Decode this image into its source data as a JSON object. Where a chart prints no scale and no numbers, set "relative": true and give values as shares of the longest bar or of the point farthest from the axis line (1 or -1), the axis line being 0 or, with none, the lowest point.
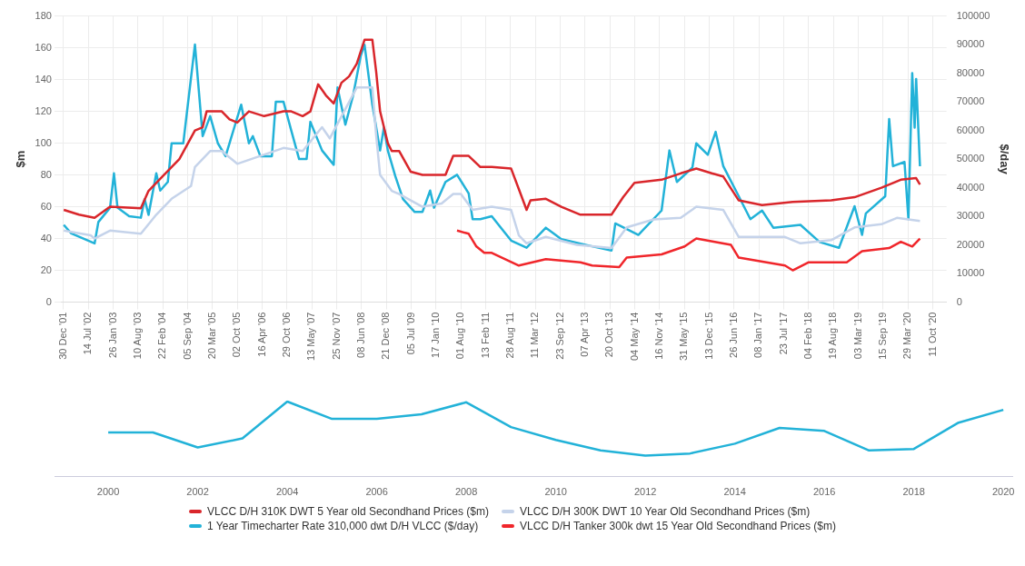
{
  "chart_data": [
    {
      "type": "line",
      "ylabel": "$m",
      "y2label": "$/day",
      "xlim": [
        "2001-12-16",
        "2021-01-27"
      ],
      "xticks": [
        {
          "value": "2001-12-30",
          "label": "30 Dec '01"
        },
        {
          "value": "2002-07-14",
          "label": "14 Jul '02"
        },
        {
          "value": "2003-01-26",
          "label": "26 Jan '03"
        },
        {
          "value": "2003-08-10",
          "label": "10 Aug '03"
        },
        {
          "value": "2004-02-22",
          "label": "22 Feb '04"
        },
        {
          "value": "2004-09-05",
          "label": "05 Sep '04"
        },
        {
          "value": "2005-03-20",
          "label": "20 Mar '05"
        },
        {
          "value": "2005-10-02",
          "label": "02 Oct '05"
        },
        {
          "value": "2006-04-16",
          "label": "16 Apr '06"
        },
        {
          "value": "2006-10-29",
          "label": "29 Oct '06"
        },
        {
          "value": "2007-05-13",
          "label": "13 May '07"
        },
        {
          "value": "2007-11-25",
          "label": "25 Nov '07"
        },
        {
          "value": "2008-06-08",
          "label": "08 Jun '08"
        },
        {
          "value": "2008-12-21",
          "label": "21 Dec '08"
        },
        {
          "value": "2009-07-05",
          "label": "05 Jul '09"
        },
        {
          "value": "2010-01-17",
          "label": "17 Jan '10"
        },
        {
          "value": "2010-08-01",
          "label": "01 Aug '10"
        },
        {
          "value": "2011-02-13",
          "label": "13 Feb '11"
        },
        {
          "value": "2011-08-28",
          "label": "28 Aug '11"
        },
        {
          "value": "2012-03-11",
          "label": "11 Mar '12"
        },
        {
          "value": "2012-09-23",
          "label": "23 Sep '12"
        },
        {
          "value": "2013-04-07",
          "label": "07 Apr '13"
        },
        {
          "value": "2013-10-20",
          "label": "20 Oct '13"
        },
        {
          "value": "2014-05-04",
          "label": "04 May '14"
        },
        {
          "value": "2014-11-16",
          "label": "16 Nov '14"
        },
        {
          "value": "2015-05-31",
          "label": "31 May '15"
        },
        {
          "value": "2015-12-13",
          "label": "13 Dec '15"
        },
        {
          "value": "2016-06-26",
          "label": "26 Jun '16"
        },
        {
          "value": "2017-01-08",
          "label": "08 Jan '17"
        },
        {
          "value": "2017-07-23",
          "label": "23 Jul '17"
        },
        {
          "value": "2018-02-04",
          "label": "04 Feb '18"
        },
        {
          "value": "2018-08-19",
          "label": "19 Aug '18"
        },
        {
          "value": "2019-03-03",
          "label": "03 Mar '19"
        },
        {
          "value": "2019-09-15",
          "label": "15 Sep '19"
        },
        {
          "value": "2020-03-29",
          "label": "29 Mar '20"
        },
        {
          "value": "2020-10-11",
          "label": "11 Oct '20"
        }
      ],
      "ylim": [
        0,
        180
      ],
      "yticks": [
        0,
        20,
        40,
        60,
        80,
        100,
        120,
        140,
        160,
        180
      ],
      "y2lim": [
        0,
        100000
      ],
      "y2ticks": [
        0,
        10000,
        20000,
        30000,
        40000,
        50000,
        60000,
        70000,
        80000,
        90000,
        100000
      ],
      "grid": true,
      "legend": "bottom",
      "series": [
        {
          "name": "VLCC D/H 310K DWT 5 Year old Secondhand Prices ($m)",
          "color": "#d9262b",
          "x": [
            "2002-01",
            "2002-05",
            "2002-09",
            "2003-01",
            "2003-09",
            "2003-11",
            "2004-03",
            "2004-07",
            "2004-11",
            "2005-01",
            "2005-02",
            "2005-06",
            "2005-08",
            "2005-10",
            "2006-01",
            "2006-05",
            "2006-10",
            "2006-12",
            "2007-03",
            "2007-05",
            "2007-07",
            "2007-09",
            "2007-11",
            "2008-01",
            "2008-03",
            "2008-05",
            "2008-07",
            "2008-09",
            "2008-10",
            "2008-11",
            "2009-01",
            "2009-02",
            "2009-04",
            "2009-07",
            "2009-10",
            "2010-04",
            "2010-06",
            "2010-10",
            "2011-01",
            "2011-04",
            "2011-09",
            "2011-11",
            "2012-01",
            "2012-02",
            "2012-06",
            "2012-10",
            "2013-03",
            "2013-11",
            "2014-02",
            "2014-05",
            "2014-12",
            "2015-05",
            "2015-09",
            "2016-01",
            "2016-04",
            "2016-08",
            "2017-02",
            "2017-10",
            "2018-08",
            "2019-02",
            "2019-09",
            "2020-02",
            "2020-06",
            "2020-07"
          ],
          "values": [
            58,
            55,
            53,
            60,
            59,
            70,
            80,
            90,
            108,
            110,
            120,
            120,
            115,
            113,
            120,
            117,
            120,
            120,
            117,
            120,
            137,
            130,
            125,
            138,
            142,
            150,
            165,
            165,
            145,
            120,
            100,
            95,
            95,
            82,
            80,
            80,
            92,
            92,
            85,
            85,
            84,
            71,
            58,
            64,
            65,
            60,
            55,
            55,
            66,
            75,
            77,
            81,
            84,
            81,
            79,
            64,
            61,
            63,
            64,
            66,
            72,
            77,
            78,
            74
          ]
        },
        {
          "name": "VLCC D/H 300K DWT 10 Year Old Secondhand Prices ($m)",
          "color": "#c5d3ea",
          "x": [
            "2002-01",
            "2002-08",
            "2002-09",
            "2003-01",
            "2003-09",
            "2004-01",
            "2004-05",
            "2004-10",
            "2004-11",
            "2005-03",
            "2005-06",
            "2005-10",
            "2006-04",
            "2006-10",
            "2007-03",
            "2007-08",
            "2007-10",
            "2008-05",
            "2008-09",
            "2008-10",
            "2008-11",
            "2009-02",
            "2009-04",
            "2009-10",
            "2010-03",
            "2010-06",
            "2010-08",
            "2010-11",
            "2011-04",
            "2011-09",
            "2011-11",
            "2012-01",
            "2012-06",
            "2013-02",
            "2013-11",
            "2014-03",
            "2014-10",
            "2015-05",
            "2015-09",
            "2016-04",
            "2016-08",
            "2017-08",
            "2017-12",
            "2018-08",
            "2019-02",
            "2019-09",
            "2020-01",
            "2020-07"
          ],
          "values": [
            45,
            42,
            40,
            45,
            43,
            55,
            65,
            73,
            85,
            95,
            95,
            87,
            92,
            97,
            95,
            110,
            103,
            135,
            135,
            105,
            80,
            70,
            68,
            60,
            62,
            68,
            68,
            58,
            60,
            58,
            42,
            37,
            41,
            36,
            34,
            47,
            52,
            53,
            60,
            58,
            41,
            41,
            37,
            39,
            47,
            49,
            53,
            51
          ]
        },
        {
          "name": "1 Year Timecharter Rate 310,000 dwt D/H VLCC ($/day)",
          "color": "#22b2d8",
          "axis": "y2",
          "x": [
            "2002-01",
            "2002-03",
            "2002-09",
            "2002-10",
            "2003-01",
            "2003-02",
            "2003-03",
            "2003-06",
            "2003-09",
            "2003-10",
            "2003-11",
            "2004-01",
            "2004-02",
            "2004-04",
            "2004-05",
            "2004-08",
            "2004-11",
            "2005-01",
            "2005-03",
            "2005-05",
            "2005-07",
            "2005-11",
            "2006-01",
            "2006-02",
            "2006-04",
            "2006-07",
            "2006-08",
            "2006-10",
            "2006-12",
            "2007-02",
            "2007-04",
            "2007-05",
            "2007-08",
            "2007-11",
            "2007-12",
            "2008-02",
            "2008-04",
            "2008-06",
            "2008-07",
            "2008-09",
            "2008-11",
            "2008-12",
            "2009-01",
            "2009-03",
            "2009-05",
            "2009-08",
            "2009-10",
            "2009-12",
            "2010-01",
            "2010-04",
            "2010-07",
            "2010-10",
            "2010-11",
            "2011-01",
            "2011-04",
            "2011-09",
            "2012-01",
            "2012-06",
            "2012-10",
            "2013-06",
            "2013-11",
            "2013-12",
            "2014-06",
            "2014-12",
            "2015-02",
            "2015-04",
            "2015-08",
            "2015-09",
            "2015-12",
            "2016-02",
            "2016-04",
            "2016-08",
            "2016-11",
            "2017-02",
            "2017-05",
            "2017-12",
            "2018-05",
            "2018-10",
            "2019-02",
            "2019-04",
            "2019-05",
            "2019-10",
            "2019-11",
            "2019-12",
            "2020-03",
            "2020-04",
            "2020-05",
            "2020-05-20",
            "2020-06",
            "2020-07"
          ],
          "values": [
            27000,
            24000,
            20500,
            28000,
            33000,
            45000,
            33000,
            30000,
            29500,
            36000,
            30500,
            45000,
            39000,
            42000,
            55500,
            55500,
            90000,
            58000,
            65000,
            55500,
            51000,
            69000,
            55500,
            58000,
            51000,
            51000,
            70000,
            70000,
            60000,
            50000,
            50000,
            63000,
            53000,
            48000,
            75000,
            62000,
            72000,
            86000,
            90000,
            69000,
            53000,
            61000,
            53000,
            44000,
            36000,
            31500,
            31500,
            39000,
            33000,
            42000,
            44500,
            38000,
            29000,
            29000,
            30000,
            21500,
            19000,
            26000,
            22000,
            19500,
            18000,
            27500,
            23500,
            32000,
            53000,
            42000,
            47000,
            55500,
            51500,
            59500,
            47500,
            37000,
            29000,
            32000,
            26000,
            27000,
            21000,
            19000,
            33500,
            23500,
            31000,
            37000,
            64000,
            47500,
            49000,
            29000,
            80000,
            61000,
            78000,
            47500
          ]
        },
        {
          "name": "VLCC D/H Tanker 300k dwt 15 Year Old Secondhand Prices ($m)",
          "color": "#f0262b",
          "x": [
            "2010-07",
            "2010-10",
            "2010-12",
            "2011-02",
            "2011-04",
            "2011-11",
            "2012-06",
            "2013-03",
            "2013-06",
            "2014-01",
            "2014-03",
            "2014-12",
            "2015-06",
            "2015-09",
            "2016-06",
            "2016-08",
            "2017-08",
            "2017-10",
            "2018-02",
            "2018-12",
            "2019-04",
            "2019-11",
            "2020-02",
            "2020-05",
            "2020-07"
          ],
          "values": [
            45,
            43,
            35,
            31,
            31,
            23,
            27,
            25,
            23,
            22,
            28,
            30,
            35,
            40,
            36,
            28,
            23,
            20,
            25,
            25,
            32,
            34,
            38,
            35,
            40
          ]
        }
      ]
    },
    {
      "type": "line",
      "relative": true,
      "color": "#22b2d8",
      "x": [
        2000,
        2001,
        2002,
        2003,
        2004,
        2005,
        2006,
        2007,
        2008,
        2009,
        2010,
        2011,
        2012,
        2013,
        2014,
        2015,
        2016,
        2017,
        2018,
        2019,
        2020
      ],
      "values": [
        0.59,
        0.59,
        0.39,
        0.51,
        1,
        0.77,
        0.77,
        0.83,
        0.99,
        0.66,
        0.49,
        0.35,
        0.28,
        0.31,
        0.44,
        0.65,
        0.61,
        0.35,
        0.37,
        0.72,
        0.89
      ],
      "xlim": [
        1998.8,
        2020.2
      ],
      "xticks": [
        2000,
        2002,
        2004,
        2006,
        2008,
        2010,
        2012,
        2014,
        2016,
        2018,
        2020
      ]
    }
  ]
}
